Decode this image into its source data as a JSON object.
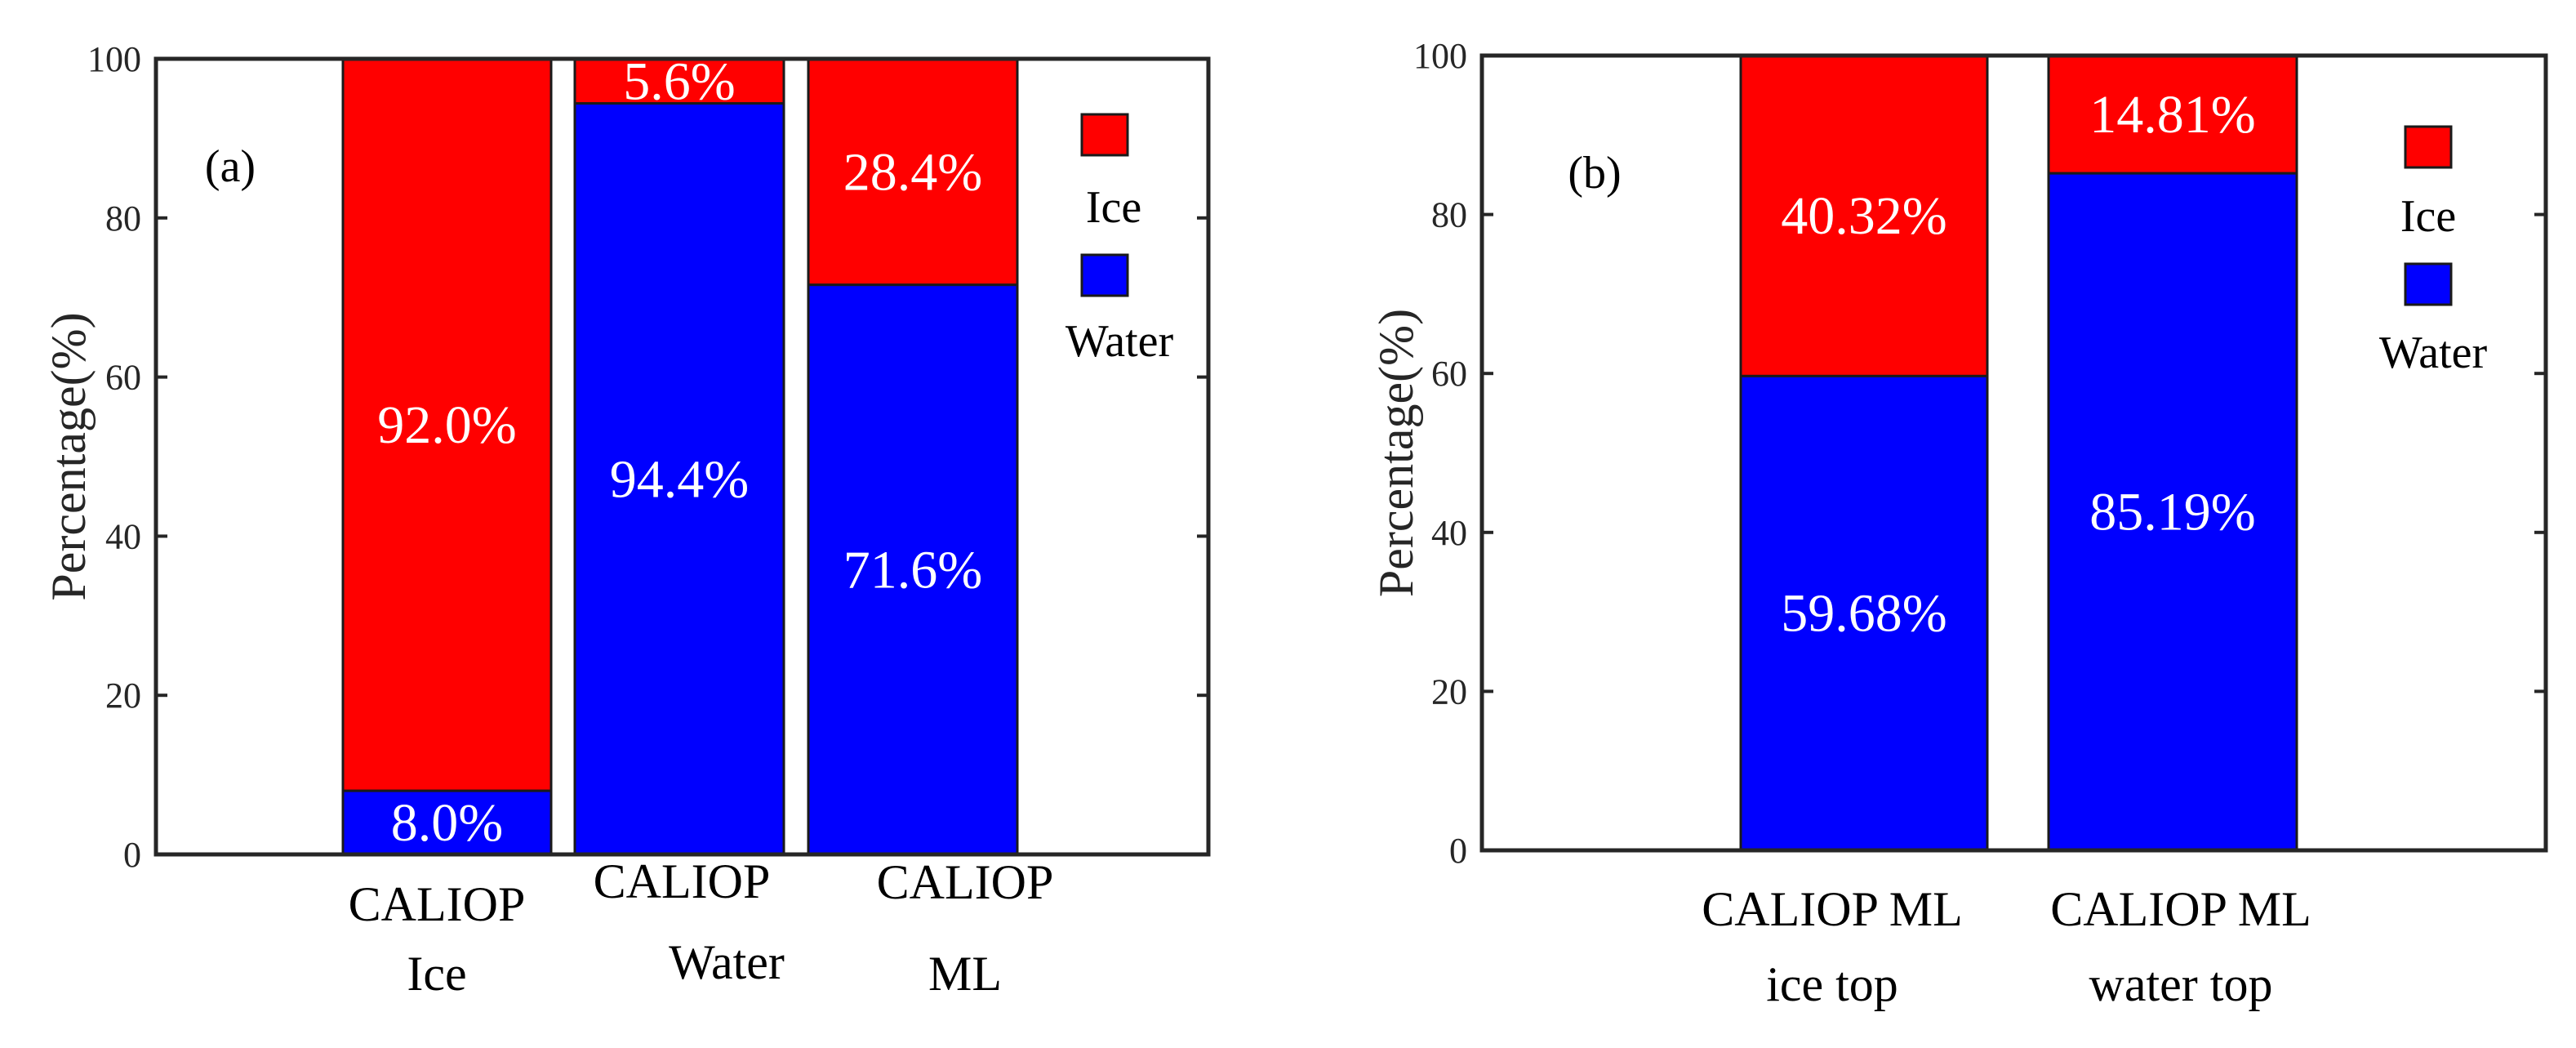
{
  "chart_data": [
    {
      "type": "bar",
      "stacked": true,
      "panel_label": "(a)",
      "ylabel": "Percentage(%)",
      "ylim": [
        0,
        100
      ],
      "yticks": [
        0,
        20,
        40,
        60,
        80,
        100
      ],
      "categories": [
        [
          "CALIOP",
          "Ice"
        ],
        [
          "CALIOP",
          "Water"
        ],
        [
          "CALIOP",
          "ML"
        ]
      ],
      "series": [
        {
          "name": "Water",
          "color": "#0000ff",
          "values": [
            8.0,
            94.4,
            71.6
          ],
          "labels": [
            "8.0%",
            "94.4%",
            "71.6%"
          ]
        },
        {
          "name": "Ice",
          "color": "#ff0000",
          "values": [
            92.0,
            5.6,
            28.4
          ],
          "labels": [
            "92.0%",
            "5.6%",
            "28.4%"
          ]
        }
      ],
      "legend": [
        "Ice",
        "Water"
      ],
      "legend_position": "right"
    },
    {
      "type": "bar",
      "stacked": true,
      "panel_label": "(b)",
      "ylabel": "Percentage(%)",
      "ylim": [
        0,
        100
      ],
      "yticks": [
        0,
        20,
        40,
        60,
        80,
        100
      ],
      "categories": [
        [
          "CALIOP ML",
          "ice top"
        ],
        [
          "CALIOP ML",
          "water top"
        ]
      ],
      "series": [
        {
          "name": "Water",
          "color": "#0000ff",
          "values": [
            59.68,
            85.19
          ],
          "labels": [
            "59.68%",
            "85.19%"
          ]
        },
        {
          "name": "Ice",
          "color": "#ff0000",
          "values": [
            40.32,
            14.81
          ],
          "labels": [
            "40.32%",
            "14.81%"
          ]
        }
      ],
      "legend": [
        "Ice",
        "Water"
      ],
      "legend_position": "right"
    }
  ]
}
